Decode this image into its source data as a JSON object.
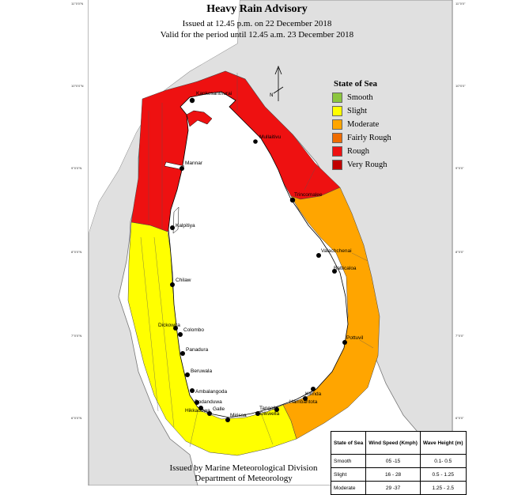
{
  "title": "Heavy Rain  Advisory",
  "issued": "Issued at 12.45 p.m. on 22 December 2018",
  "valid": "Valid for the period until 12.45 a.m. 23 December 2018",
  "footer": {
    "line1": "Issued by Marine Meteorological Division",
    "line2": "Department of Meteorology"
  },
  "legend": {
    "title": "State of Sea",
    "items": [
      {
        "label": "Smooth",
        "color": "#8cc63f"
      },
      {
        "label": "Slight",
        "color": "#ffff00"
      },
      {
        "label": "Moderate",
        "color": "#ffa500"
      },
      {
        "label": "Fairly Rough",
        "color": "#ef6c00"
      },
      {
        "label": "Rough",
        "color": "#ee1111"
      },
      {
        "label": "Very Rough",
        "color": "#c00000"
      }
    ]
  },
  "sea_table": {
    "headers": [
      "State of Sea",
      "Wind Speed (Kmph)",
      "Wave Height (m)"
    ],
    "rows": [
      [
        "Smooth",
        "05 -15",
        "0.1- 0.5"
      ],
      [
        "Slight",
        "16 - 28",
        "0.5 - 1.25"
      ],
      [
        "Moderate",
        "29 -37",
        "1.25 - 2.5"
      ]
    ]
  },
  "regions": {
    "north": "Rough",
    "west_south": "Slight",
    "east": "Moderate"
  },
  "cities": [
    "Kankesanthurai",
    "Mullaitivu",
    "Mannar",
    "Trincomalee",
    "Kalpitiya",
    "Valachchenai",
    "Batticaloa",
    "Chilaw",
    "Dickowita",
    "Colombo",
    "Panadura",
    "Pottuvil",
    "Beruwala",
    "Ambalangoda",
    "Dodanduwa",
    "Hikkaduwa",
    "Galle",
    "Mirissa",
    "Tangalle",
    "Dikwella",
    "Hambantota",
    "Kirinda"
  ],
  "lat_ticks": {
    "left": [
      "11°0'0\"N",
      "10°0'0\"N",
      "9°0'0\"N",
      "8°0'0\"N",
      "7°0'0\"N",
      "6°0'0\"N"
    ],
    "right": [
      "11°0'0\"",
      "10°0'0\"",
      "9°0'0\"",
      "8°0'0\"",
      "7°0'0\"",
      "6°0'0\""
    ]
  }
}
